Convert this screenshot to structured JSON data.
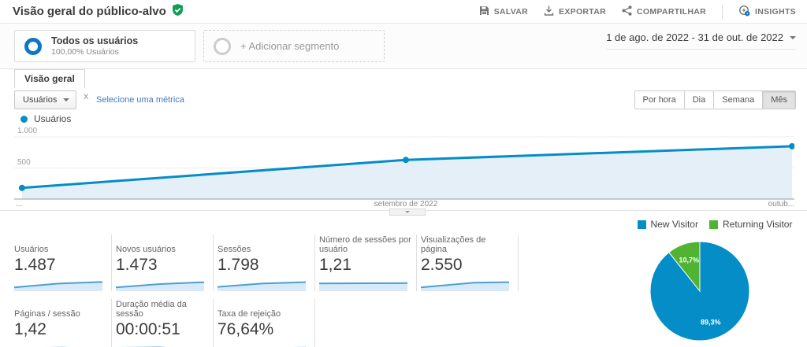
{
  "header": {
    "title": "Visão geral do público-alvo",
    "actions": {
      "save": "SALVAR",
      "export": "EXPORTAR",
      "share": "COMPARTILHAR",
      "insights": "INSIGHTS"
    }
  },
  "segments": {
    "all_users_title": "Todos os usuários",
    "all_users_subtitle": "100,00% Usuários",
    "add_segment_label": "+ Adicionar segmento",
    "date_range": "1 de ago. de 2022 - 31 de out. de 2022"
  },
  "tabs": {
    "overview": "Visão geral"
  },
  "toolbar": {
    "metric_select": "Usuários",
    "vs_label": "X",
    "add_metric_link": "Selecione uma métrica",
    "granularity": [
      "Por hora",
      "Dia",
      "Semana",
      "Mês"
    ],
    "granularity_selected": "Mês"
  },
  "chart_data": [
    {
      "type": "area",
      "legend": [
        {
          "name": "Usuários",
          "color": "#058dc7"
        }
      ],
      "x_labels": [
        "...",
        "setembro de 2022",
        "outub..."
      ],
      "x_positions": [
        0.01,
        0.502,
        0.997
      ],
      "values": [
        180,
        630,
        850
      ],
      "ylim": [
        0,
        1000
      ],
      "yticks": [
        {
          "value": 500,
          "label": "500"
        },
        {
          "value": 1000,
          "label": "1.000"
        }
      ],
      "line_color": "#058dc7",
      "fill_color": "#e4eff8",
      "grid": true
    },
    {
      "type": "pie",
      "legend_position": "top",
      "slices": [
        {
          "label": "New Visitor",
          "value": 89.3,
          "display": "89,3%",
          "color": "#058dc7"
        },
        {
          "label": "Returning Visitor",
          "value": 10.7,
          "display": "10,7%",
          "color": "#50b432"
        }
      ]
    }
  ],
  "metrics": {
    "rows": [
      {
        "cards": [
          {
            "label": "Usuários",
            "value": "1.487",
            "spark": [
              [
                0,
                0.85
              ],
              [
                0.5,
                0.45
              ],
              [
                1,
                0.28
              ]
            ]
          },
          {
            "label": "Novos usuários",
            "value": "1.473",
            "spark": [
              [
                0,
                0.85
              ],
              [
                0.5,
                0.5
              ],
              [
                1,
                0.3
              ]
            ]
          },
          {
            "label": "Sessões",
            "value": "1.798",
            "spark": [
              [
                0,
                0.8
              ],
              [
                0.5,
                0.45
              ],
              [
                1,
                0.3
              ]
            ]
          },
          {
            "label": "Número de sessões por usuário",
            "value": "1,21",
            "spark": [
              [
                0,
                0.44
              ],
              [
                0.5,
                0.42
              ],
              [
                1,
                0.4
              ]
            ]
          },
          {
            "label": "Visualizações de página",
            "value": "2.550",
            "spark": [
              [
                0,
                0.85
              ],
              [
                0.6,
                0.35
              ],
              [
                1,
                0.3
              ]
            ]
          }
        ]
      },
      {
        "cards": [
          {
            "label": "Páginas / sessão",
            "value": "1,42",
            "spark": [
              [
                0,
                0.45
              ],
              [
                0.55,
                0.4
              ],
              [
                1,
                0.52
              ]
            ]
          },
          {
            "label": "Duração média da sessão",
            "value": "00:00:51",
            "spark": [
              [
                0,
                0.42
              ],
              [
                0.5,
                0.38
              ],
              [
                1,
                0.65
              ]
            ]
          },
          {
            "label": "Taxa de rejeição",
            "value": "76,64%",
            "spark": [
              [
                0,
                0.52
              ],
              [
                0.5,
                0.45
              ],
              [
                1,
                0.4
              ]
            ]
          }
        ]
      }
    ]
  }
}
